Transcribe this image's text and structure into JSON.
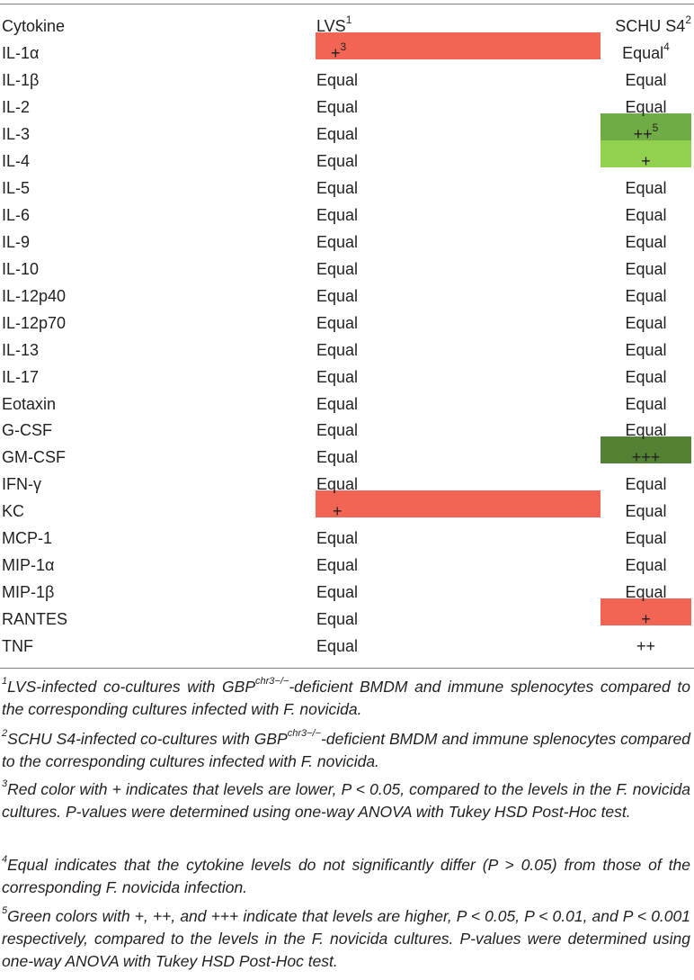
{
  "header": {
    "cytokine": "Cytokine",
    "lvs": "LVS",
    "lvs_note": "1",
    "schu": "SCHU S4",
    "schu_note": "2"
  },
  "rows": [
    {
      "cytokine": "IL-1α",
      "lvs": "+",
      "lvs_note": "3",
      "schu": "Equal",
      "schu_note": "4"
    },
    {
      "cytokine": "IL-1β",
      "lvs": "Equal",
      "schu": "Equal"
    },
    {
      "cytokine": "IL-2",
      "lvs": "Equal",
      "schu": "Equal"
    },
    {
      "cytokine": "IL-3",
      "lvs": "Equal",
      "schu": "++",
      "schu_note": "5"
    },
    {
      "cytokine": "IL-4",
      "lvs": "Equal",
      "schu": "+"
    },
    {
      "cytokine": "IL-5",
      "lvs": "Equal",
      "schu": "Equal"
    },
    {
      "cytokine": "IL-6",
      "lvs": "Equal",
      "schu": "Equal"
    },
    {
      "cytokine": "IL-9",
      "lvs": "Equal",
      "schu": "Equal"
    },
    {
      "cytokine": "IL-10",
      "lvs": "Equal",
      "schu": "Equal"
    },
    {
      "cytokine": "IL-12p40",
      "lvs": "Equal",
      "schu": "Equal"
    },
    {
      "cytokine": "IL-12p70",
      "lvs": "Equal",
      "schu": "Equal"
    },
    {
      "cytokine": "IL-13",
      "lvs": "Equal",
      "schu": "Equal"
    },
    {
      "cytokine": "IL-17",
      "lvs": "Equal",
      "schu": "Equal"
    },
    {
      "cytokine": "Eotaxin",
      "lvs": "Equal",
      "schu": "Equal"
    },
    {
      "cytokine": "G-CSF",
      "lvs": "Equal",
      "schu": "Equal"
    },
    {
      "cytokine": "GM-CSF",
      "lvs": "Equal",
      "schu": "+++"
    },
    {
      "cytokine": "IFN-γ",
      "lvs": "Equal",
      "schu": "Equal"
    },
    {
      "cytokine": "KC",
      "lvs": "+",
      "schu": "Equal"
    },
    {
      "cytokine": "MCP-1",
      "lvs": "Equal",
      "schu": "Equal"
    },
    {
      "cytokine": "MIP-1α",
      "lvs": "Equal",
      "schu": "Equal"
    },
    {
      "cytokine": "MIP-1β",
      "lvs": "Equal",
      "schu": "Equal"
    },
    {
      "cytokine": "RANTES",
      "lvs": "Equal",
      "schu": "+"
    },
    {
      "cytokine": "TNF",
      "lvs": "Equal",
      "schu": "++"
    }
  ],
  "colors": {
    "lower": "#f26454",
    "higher_p01": "#6fac46",
    "higher_p05": "#92d050",
    "higher_p001": "#548235"
  },
  "footnotes": [
    {
      "num": "1",
      "text_a": "LVS-infected co-cultures with GBP",
      "sup": "chr3−/−",
      "text_b": "-deficient BMDM and immune splenocytes compared to the corresponding cultures infected with F. novicida."
    },
    {
      "num": "2",
      "text_a": "SCHU S4-infected co-cultures with GBP",
      "sup": "chr3−/−",
      "text_b": "-deficient BMDM and immune splenocytes compared to the corresponding cultures infected with F. novicida."
    },
    {
      "num": "3",
      "text": "Red color with + indicates that levels are lower, P < 0.05, compared to the levels in the F. novicida cultures. P-values were determined using one-way ANOVA with Tukey HSD Post-Hoc test."
    },
    {
      "num": "4",
      "text": "Equal indicates that the cytokine levels do not significantly differ (P > 0.05) from those of the corresponding F. novicida infection."
    },
    {
      "num": "5",
      "text": "Green colors with +, ++, and +++ indicate that levels are higher, P < 0.05, P < 0.01, and P < 0.001 respectively, compared to the levels in the F. novicida cultures. P-values were determined using one-way ANOVA with Tukey HSD Post-Hoc test."
    }
  ]
}
